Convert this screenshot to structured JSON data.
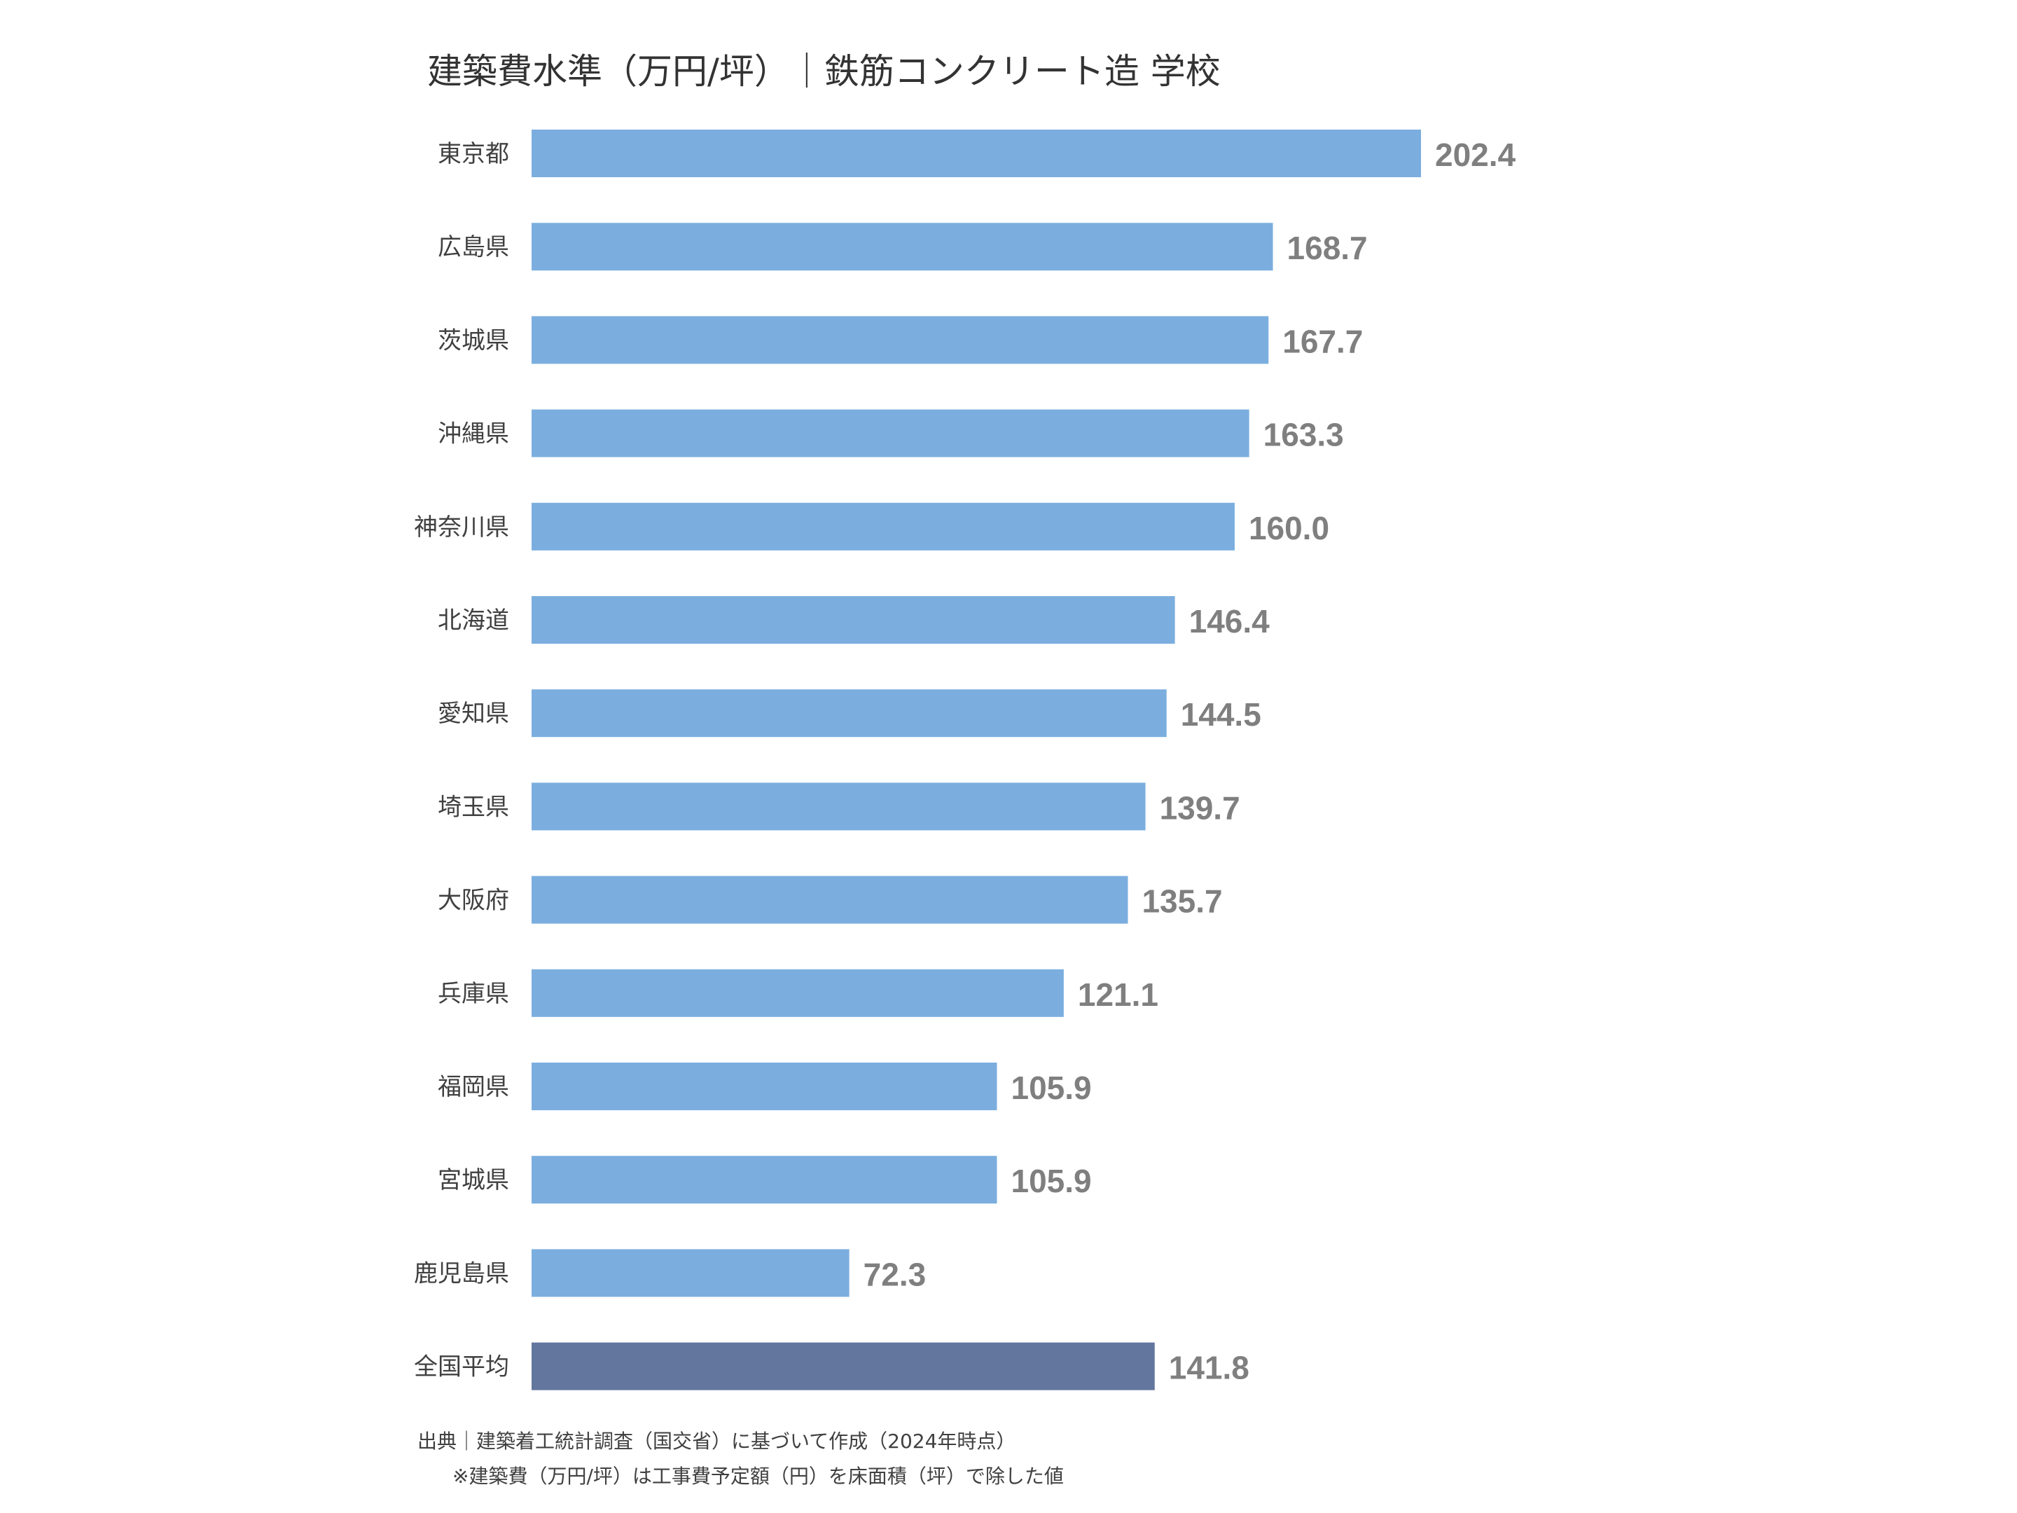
{
  "chart_data": {
    "type": "bar",
    "orientation": "horizontal",
    "title": "建築費水準（万円/坪）｜鉄筋コンクリート造 学校",
    "categories": [
      "東京都",
      "広島県",
      "茨城県",
      "沖縄県",
      "神奈川県",
      "北海道",
      "愛知県",
      "埼玉県",
      "大阪府",
      "兵庫県",
      "福岡県",
      "宮城県",
      "鹿児島県",
      "全国平均"
    ],
    "values": [
      202.4,
      168.7,
      167.7,
      163.3,
      160.0,
      146.4,
      144.5,
      139.7,
      135.7,
      121.1,
      105.9,
      105.9,
      72.3,
      141.8
    ],
    "value_labels": [
      "202.4",
      "168.7",
      "167.7",
      "163.3",
      "160.0",
      "146.4",
      "144.5",
      "139.7",
      "135.7",
      "121.1",
      "105.9",
      "105.9",
      "72.3",
      "141.8"
    ],
    "highlight_category": "全国平均",
    "xlim": [
      0,
      202.4
    ],
    "grid": false,
    "legend": "none",
    "colors": {
      "bar": "#7baedf",
      "highlight": "#63769e",
      "label": "#7f7f7f",
      "category": "#404040"
    }
  },
  "footnotes": {
    "source": "出典｜建築着工統計調査（国交省）に基づいて作成（2024年時点）",
    "remark": "※建築費（万円/坪）は工事費予定額（円）を床面積（坪）で除した値"
  }
}
